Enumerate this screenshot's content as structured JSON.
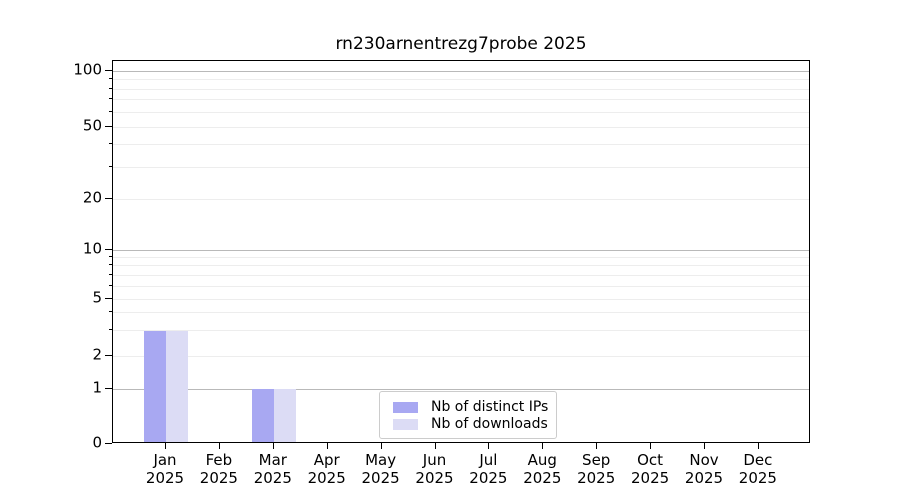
{
  "chart_data": {
    "type": "bar",
    "title": "rn230arnentrezg7probe 2025",
    "categories": [
      "Jan",
      "Feb",
      "Mar",
      "Apr",
      "May",
      "Jun",
      "Jul",
      "Aug",
      "Sep",
      "Oct",
      "Nov",
      "Dec"
    ],
    "x_tick_second_line": "2025",
    "series": [
      {
        "name": "Nb of distinct IPs",
        "color": "#a8a8f2",
        "values": [
          3,
          0,
          1,
          0,
          0,
          0,
          0,
          0,
          0,
          0,
          0,
          0
        ]
      },
      {
        "name": "Nb of downloads",
        "color": "#dcdcf5",
        "values": [
          3,
          0,
          1,
          0,
          0,
          0,
          0,
          0,
          0,
          0,
          0,
          0
        ]
      }
    ],
    "yscale": "log above 1, linear 0-1",
    "ylim": [
      0,
      100
    ],
    "y_tick_labels": [
      100,
      50,
      20,
      10,
      5,
      2,
      1,
      0
    ],
    "y_major_gridlines": [
      100,
      10,
      1
    ],
    "y_minor_gridlines": [
      90,
      80,
      70,
      60,
      50,
      40,
      30,
      20,
      9,
      8,
      7,
      6,
      5,
      4,
      3,
      2
    ],
    "grid": true,
    "legend_position": "lower-center-inside"
  },
  "colors": {
    "bar_distinct_ips": "#a8a8f2",
    "bar_downloads": "#dcdcf5",
    "grid_major": "#b9b9b9",
    "grid_minor": "#ededed",
    "axis": "#000000",
    "background": "#ffffff"
  }
}
